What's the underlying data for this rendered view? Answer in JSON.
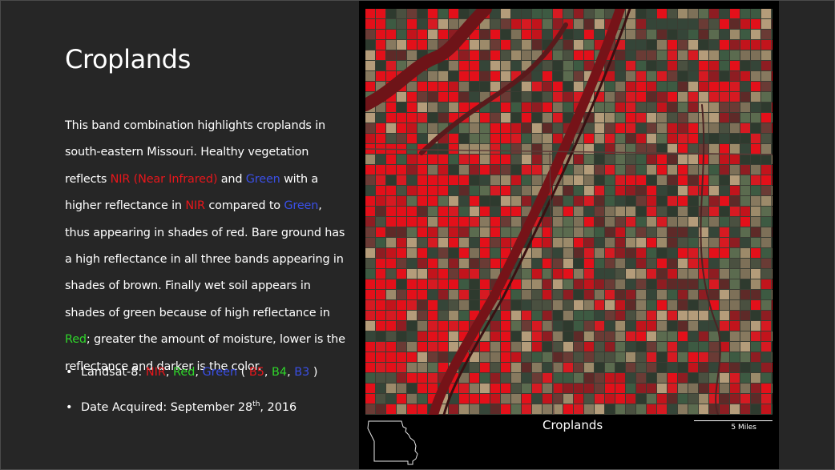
{
  "slide": {
    "title": "Croplands",
    "body": {
      "s1": "This band combination highlights croplands in south-eastern Missouri. Healthy vegetation reflects ",
      "nir_near_infrared": "NIR (Near Infrared)",
      "s2": " and ",
      "green1": "Green",
      "s3": " with a higher reflectance in ",
      "nir2": "NIR",
      "s4": " compared to ",
      "green2": "Green",
      "s5": ", thus appearing in shades of red. Bare ground has a high reflectance in all three bands appearing in shades of brown. Finally wet soil appears in shades of green because of high reflectance in ",
      "red": "Red",
      "s6": "; greater the amount of moisture, lower is the reflectance and darker is the color."
    },
    "bullet1": {
      "prefix": "Landsat-8: ",
      "nir": "NIR",
      "c1": ", ",
      "red": "Red",
      "c2": ", ",
      "green": "Green",
      "open": " ( ",
      "b5": "B5",
      "c3": ", ",
      "b4": "B4",
      "c4": ", ",
      "b3": "B3",
      "close": " )"
    },
    "bullet2": {
      "prefix": "Date Acquired: September 28",
      "sup": "th",
      "suffix": ", 2016"
    }
  },
  "image_panel": {
    "caption": "Croplands",
    "scale_label": "5 Miles"
  },
  "colors": {
    "nir": "#e8161b",
    "red": "#2fd62a",
    "green": "#3a4fe6",
    "background": "#262626",
    "panel": "#000000"
  }
}
